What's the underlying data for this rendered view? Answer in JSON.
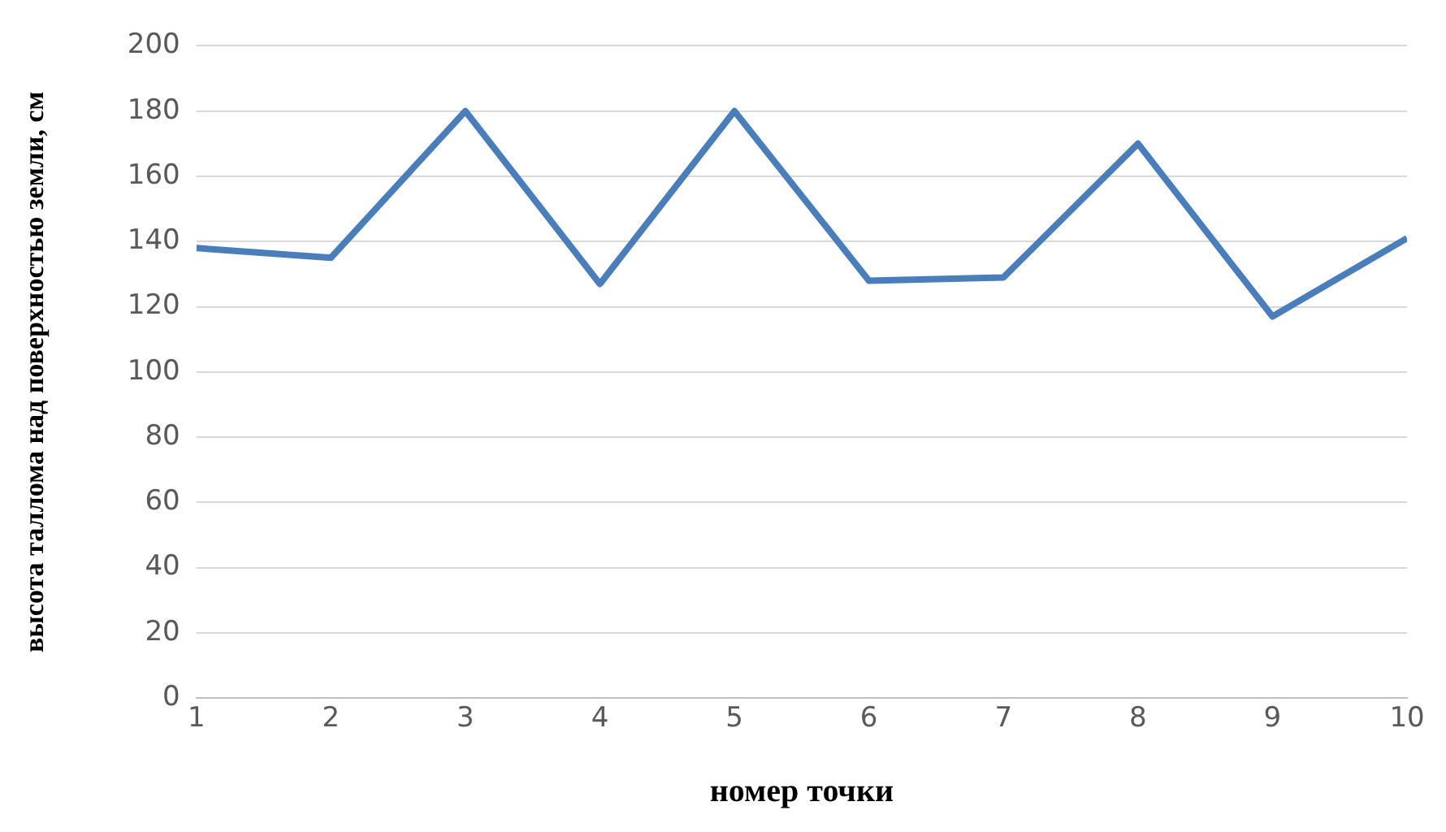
{
  "chart_data": {
    "type": "line",
    "xlabel": "номер точки",
    "ylabel": "высота таллома над поверхностью земли, см",
    "x": [
      1,
      2,
      3,
      4,
      5,
      6,
      7,
      8,
      9,
      10
    ],
    "series": [
      {
        "color": "#4a7ebb",
        "values": [
          138,
          135,
          180,
          127,
          180,
          128,
          129,
          170,
          117,
          141
        ]
      }
    ],
    "xlim": [
      1,
      10
    ],
    "xticks": [
      1,
      2,
      3,
      4,
      5,
      6,
      7,
      8,
      9,
      10
    ],
    "ylim": [
      0,
      200
    ],
    "yticks": [
      0,
      20,
      40,
      60,
      80,
      100,
      120,
      140,
      160,
      180,
      200
    ],
    "grid": "y",
    "legend": false,
    "marker": "none",
    "line_style": "solid"
  }
}
